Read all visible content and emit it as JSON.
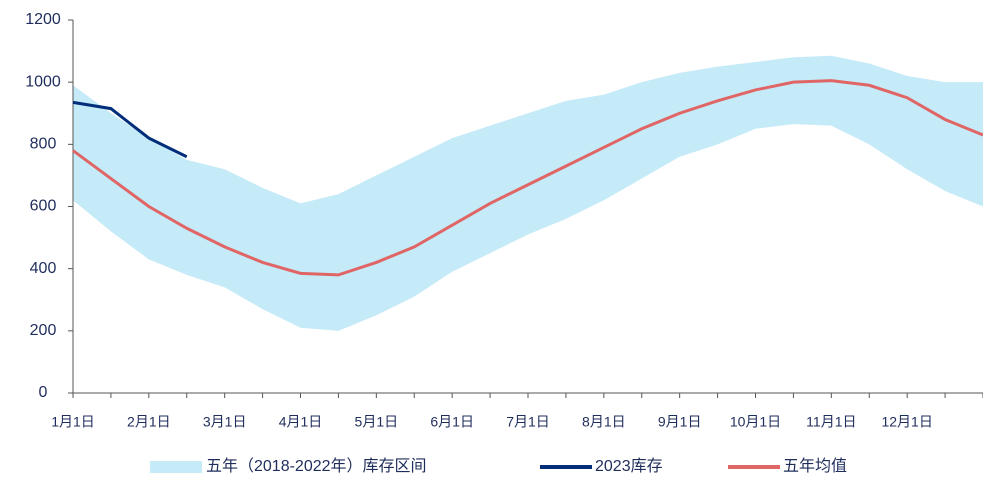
{
  "chart_data": {
    "type": "line",
    "categories": [
      "1月1日",
      null,
      "2月1日",
      null,
      "3月1日",
      null,
      "4月1日",
      null,
      "5月1日",
      null,
      "6月1日",
      null,
      "7月1日",
      null,
      "8月1日",
      null,
      "9月1日",
      null,
      "10月1日",
      null,
      "11月1日",
      null,
      "12月1日",
      null,
      null
    ],
    "band": {
      "name": "五年（2018-2022年）库存区间",
      "color": "#c5eaf8",
      "upper": [
        990,
        900,
        820,
        750,
        720,
        660,
        610,
        640,
        700,
        760,
        820,
        860,
        900,
        940,
        960,
        1000,
        1030,
        1050,
        1065,
        1080,
        1085,
        1060,
        1020,
        1000,
        1000
      ],
      "lower": [
        620,
        520,
        430,
        380,
        340,
        270,
        210,
        200,
        250,
        310,
        390,
        450,
        510,
        560,
        620,
        690,
        760,
        800,
        850,
        865,
        860,
        800,
        720,
        650,
        600
      ]
    },
    "series": [
      {
        "name": "2023库存",
        "color": "#002e7a",
        "values": [
          935,
          915,
          820,
          760,
          null,
          null,
          null,
          null,
          null,
          null,
          null,
          null,
          null,
          null,
          null,
          null,
          null,
          null,
          null,
          null,
          null,
          null,
          null,
          null,
          null
        ]
      },
      {
        "name": "五年均值",
        "color": "#e06666",
        "values": [
          780,
          690,
          600,
          530,
          470,
          420,
          385,
          380,
          420,
          470,
          540,
          610,
          670,
          730,
          790,
          850,
          900,
          940,
          975,
          1000,
          1005,
          990,
          950,
          880,
          830
        ]
      }
    ],
    "ylim": [
      0,
      1200
    ],
    "yticks": [
      0,
      200,
      400,
      600,
      800,
      1000,
      1200
    ]
  }
}
